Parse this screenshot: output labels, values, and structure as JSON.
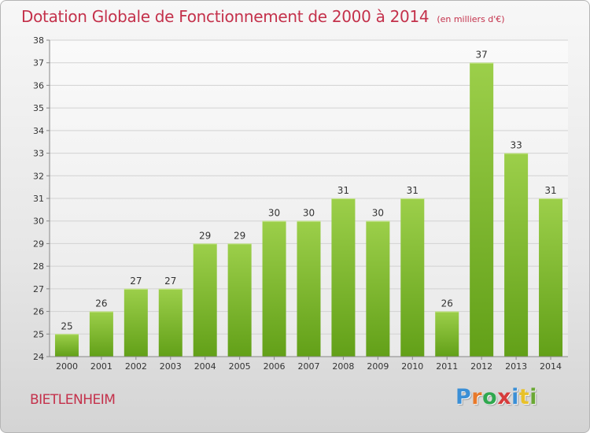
{
  "header": {
    "title": "Dotation Globale de Fonctionnement de 2000 à 2014",
    "unit": "(en milliers d'€)"
  },
  "footer": {
    "commune": "BIETLENHEIM",
    "logo": [
      "P",
      "r",
      "o",
      "x",
      "i",
      "t",
      "i"
    ]
  },
  "colors": {
    "title": "#c4314b",
    "bar_top": "#9ccf4a",
    "bar_bottom": "#62a018",
    "logo": [
      "#3b8fd6",
      "#e8792a",
      "#2fa84f",
      "#d63b3b",
      "#3b8fd6",
      "#e8c12a",
      "#6aa834"
    ]
  },
  "chart_data": {
    "type": "bar",
    "categories": [
      "2000",
      "2001",
      "2002",
      "2003",
      "2004",
      "2005",
      "2006",
      "2007",
      "2008",
      "2009",
      "2010",
      "2011",
      "2012",
      "2013",
      "2014"
    ],
    "values": [
      25,
      26,
      27,
      27,
      29,
      29,
      30,
      30,
      31,
      30,
      31,
      26,
      37,
      33,
      31
    ],
    "yticks": [
      "24",
      "25",
      "26",
      "27",
      "28",
      "29",
      "30",
      "31",
      "32",
      "33",
      "34",
      "35",
      "36",
      "37",
      "38"
    ],
    "ylim": [
      24,
      38
    ],
    "grid": true,
    "legend": "none"
  }
}
